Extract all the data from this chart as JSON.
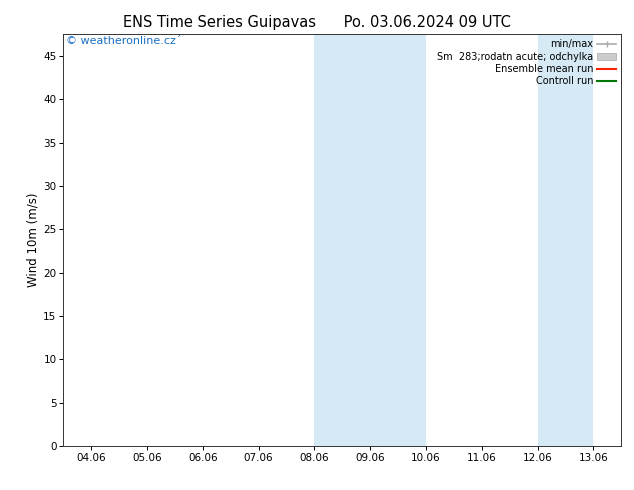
{
  "title_left": "ENS Time Series Guipavas",
  "title_right": "Po. 03.06.2024 09 UTC",
  "ylabel": "Wind 10m (m/s)",
  "ylim": [
    0,
    47.5
  ],
  "yticks": [
    0,
    5,
    10,
    15,
    20,
    25,
    30,
    35,
    40,
    45
  ],
  "xlabels": [
    "04.06",
    "05.06",
    "06.06",
    "07.06",
    "08.06",
    "09.06",
    "10.06",
    "11.06",
    "12.06",
    "13.06"
  ],
  "x_positions": [
    0,
    1,
    2,
    3,
    4,
    5,
    6,
    7,
    8,
    9
  ],
  "shaded_bands": [
    {
      "xmin": 4.0,
      "xmax": 5.0,
      "color": "#d6eaf5"
    },
    {
      "xmin": 5.0,
      "xmax": 6.0,
      "color": "#d6eaf5"
    },
    {
      "xmin": 8.0,
      "xmax": 9.0,
      "color": "#d6eaf5"
    }
  ],
  "copyright_text": "© weatheronline.cz´",
  "copyright_color": "#1a6ec0",
  "bg_color": "#ffffff",
  "plot_bg_color": "#ffffff",
  "title_fontsize": 10.5,
  "tick_fontsize": 7.5,
  "ylabel_fontsize": 8.5,
  "legend_fontsize": 7.0,
  "copyright_fontsize": 8.0,
  "minmax_color": "#aaaaaa",
  "sm_color": "#cccccc",
  "ens_color": "#ff2200",
  "ctrl_color": "#007700"
}
